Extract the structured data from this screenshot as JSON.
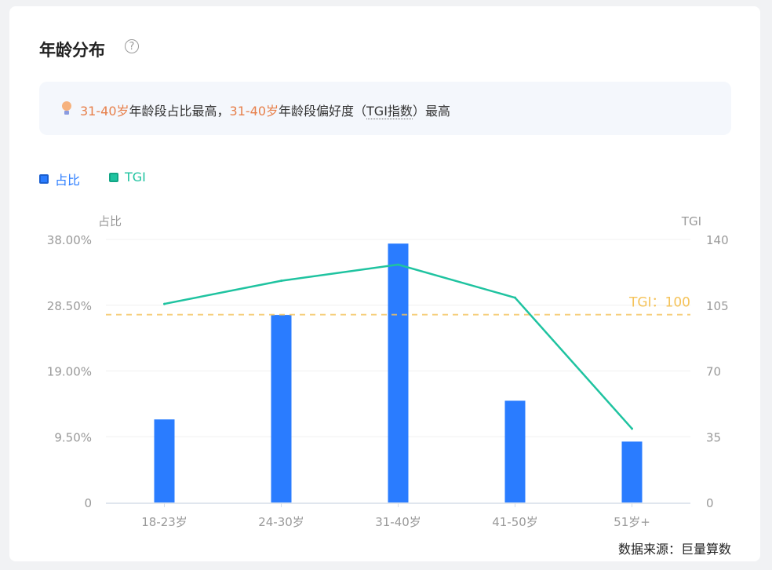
{
  "title": "年龄分布",
  "help_icon": "question-circle-icon",
  "insight": {
    "icon": "lightbulb-icon",
    "parts": [
      "31-40岁",
      "年龄段占比最高，",
      "31-40岁",
      "年龄段偏好度（",
      "TGI指数",
      "）最高"
    ]
  },
  "legend": [
    {
      "label": "占比",
      "color": "#2a7cff"
    },
    {
      "label": "TGI",
      "color": "#1fc3a0"
    }
  ],
  "source": "数据来源：巨量算数",
  "chart_data": {
    "type": "bar+line",
    "categories": [
      "18-23岁",
      "24-30岁",
      "31-40岁",
      "41-50岁",
      "51岁+"
    ],
    "series": [
      {
        "name": "占比",
        "type": "bar",
        "axis": "left",
        "values": [
          12.0,
          27.1,
          37.4,
          14.7,
          8.8
        ],
        "color": "#2a7cff"
      },
      {
        "name": "TGI",
        "type": "line",
        "axis": "right",
        "values": [
          105.7,
          118,
          126.6,
          109,
          39.3
        ],
        "color": "#1fc3a0"
      }
    ],
    "left_axis": {
      "label": "占比",
      "ticks": [
        "0",
        "9.50%",
        "19.00%",
        "28.50%",
        "38.00%"
      ],
      "range": [
        0,
        38
      ]
    },
    "right_axis": {
      "label": "TGI",
      "ticks": [
        "0",
        "35",
        "70",
        "105",
        "140"
      ],
      "range": [
        0,
        140
      ]
    },
    "reference_line": {
      "label": "TGI：100",
      "value": 100,
      "color": "#f5c35a"
    },
    "grid": true
  }
}
